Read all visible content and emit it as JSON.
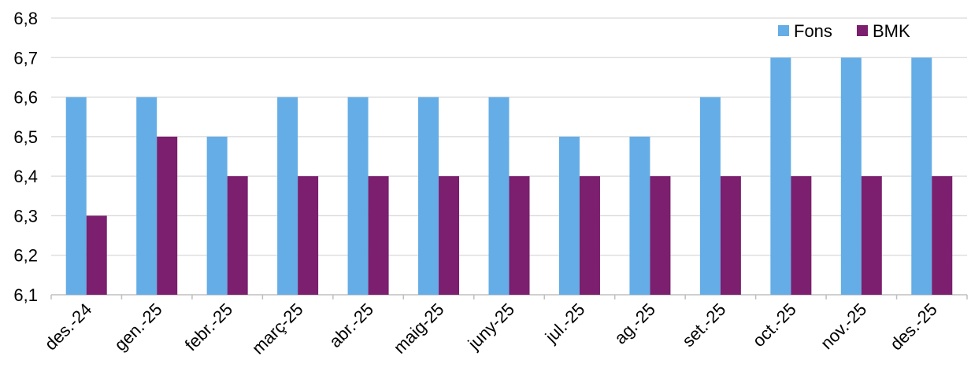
{
  "chart_data": {
    "type": "bar",
    "title": "",
    "categories": [
      "des.-24",
      "gen.-25",
      "febr.-25",
      "març-25",
      "abr.-25",
      "maig-25",
      "juny-25",
      "jul.-25",
      "ag.-25",
      "set.-25",
      "oct.-25",
      "nov.-25",
      "des.-25"
    ],
    "series": [
      {
        "name": "Fons",
        "color": "#65ade6",
        "values": [
          6.6,
          6.6,
          6.5,
          6.6,
          6.6,
          6.6,
          6.6,
          6.5,
          6.5,
          6.6,
          6.7,
          6.7,
          6.7
        ]
      },
      {
        "name": "BMK",
        "color": "#7b1f6e",
        "values": [
          6.3,
          6.5,
          6.4,
          6.4,
          6.4,
          6.4,
          6.4,
          6.4,
          6.4,
          6.4,
          6.4,
          6.4,
          6.4
        ]
      }
    ],
    "ylim": [
      6.1,
      6.8
    ],
    "yticks": [
      "6,1",
      "6,2",
      "6,3",
      "6,4",
      "6,5",
      "6,6",
      "6,7",
      "6,8"
    ],
    "grid": true,
    "legend_position": "top-right",
    "xlabel": "",
    "ylabel": ""
  }
}
